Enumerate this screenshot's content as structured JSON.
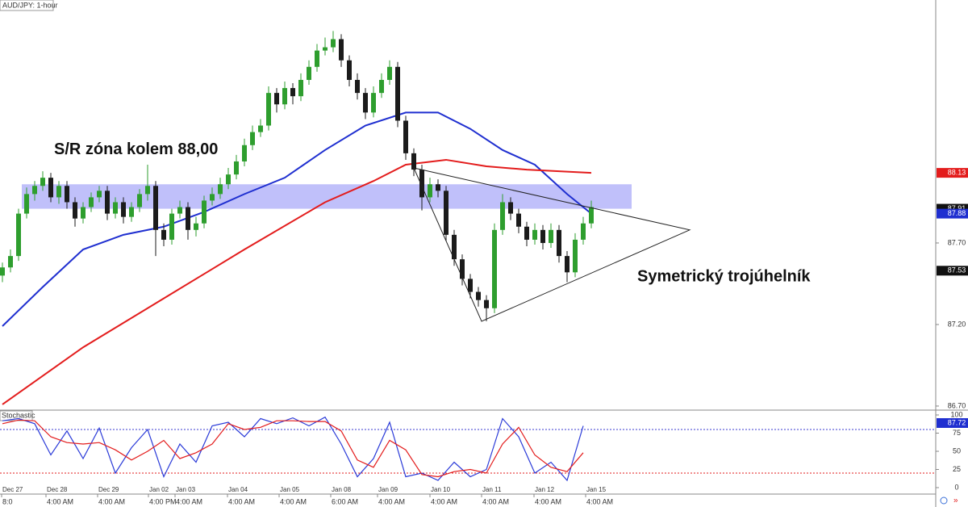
{
  "chart_data": [
    {
      "type": "candlestick",
      "title": "AUD/JPY: 1-hour",
      "xlim": [
        -0.3,
        115.7
      ],
      "ylim": [
        86.675,
        89.19
      ],
      "up_color": "#2e9e2e",
      "down_color": "#1b1b1b",
      "xticks": [
        {
          "value": -0.1,
          "label": "Dec 27",
          "time": "8:0"
        },
        {
          "value": 5.4,
          "label": "Dec 28",
          "time": "4:00 AM"
        },
        {
          "value": 11.8,
          "label": "Dec 29",
          "time": "4:00 AM"
        },
        {
          "value": 18.1,
          "label": "Jan 02",
          "time": "4:00 PM"
        },
        {
          "value": 21.4,
          "label": "Jan 03",
          "time": "4:00 AM"
        },
        {
          "value": 27.9,
          "label": "Jan 04",
          "time": "4:00 AM"
        },
        {
          "value": 34.3,
          "label": "Jan 05",
          "time": "4:00 AM"
        },
        {
          "value": 40.7,
          "label": "Jan 08",
          "time": "6:00 AM"
        },
        {
          "value": 46.5,
          "label": "Jan 09",
          "time": "4:00 AM"
        },
        {
          "value": 53,
          "label": "Jan 10",
          "time": "4:00 AM"
        },
        {
          "value": 59.4,
          "label": "Jan 11",
          "time": "4:00 AM"
        },
        {
          "value": 65.9,
          "label": "Jan 12",
          "time": "4:00 AM"
        },
        {
          "value": 72.3,
          "label": "Jan 15",
          "time": "4:00 AM"
        }
      ],
      "yticks": [
        {
          "value": 86.7,
          "label": "86.70"
        },
        {
          "value": 87.2,
          "label": "87.20"
        },
        {
          "value": 87.7,
          "label": "87.70"
        }
      ],
      "price_markers": [
        {
          "value": 88.13,
          "label": "88.13",
          "color": "#e31c1c"
        },
        {
          "value": 87.91,
          "label": "87.91",
          "color": "#111111"
        },
        {
          "value": 87.88,
          "label": "87.88",
          "color": "#1f2fd0"
        },
        {
          "value": 87.53,
          "label": "87.53",
          "color": "#111111"
        }
      ],
      "candles": [
        [
          87.5,
          87.58,
          87.46,
          87.55
        ],
        [
          87.55,
          87.66,
          87.52,
          87.62
        ],
        [
          87.62,
          87.91,
          87.59,
          87.88
        ],
        [
          87.88,
          88.04,
          87.85,
          88.0
        ],
        [
          88.0,
          88.08,
          87.96,
          88.05
        ],
        [
          88.05,
          88.14,
          88.02,
          88.1
        ],
        [
          88.1,
          88.13,
          87.95,
          87.98
        ],
        [
          87.98,
          88.08,
          87.94,
          88.05
        ],
        [
          88.05,
          88.08,
          87.91,
          87.95
        ],
        [
          87.95,
          87.98,
          87.8,
          87.85
        ],
        [
          87.85,
          87.95,
          87.82,
          87.92
        ],
        [
          87.92,
          88.01,
          87.89,
          87.98
        ],
        [
          87.98,
          88.05,
          87.95,
          88.02
        ],
        [
          88.02,
          88.05,
          87.84,
          87.88
        ],
        [
          87.88,
          87.98,
          87.85,
          87.95
        ],
        [
          87.95,
          87.98,
          87.82,
          87.86
        ],
        [
          87.86,
          87.95,
          87.83,
          87.92
        ],
        [
          87.92,
          88.03,
          87.89,
          88.0
        ],
        [
          88.0,
          88.18,
          87.96,
          88.05
        ],
        [
          88.05,
          88.08,
          87.62,
          87.78
        ],
        [
          87.78,
          87.82,
          87.68,
          87.72
        ],
        [
          87.72,
          87.91,
          87.69,
          87.88
        ],
        [
          87.88,
          87.96,
          87.85,
          87.92
        ],
        [
          87.92,
          87.95,
          87.72,
          87.78
        ],
        [
          87.78,
          87.86,
          87.74,
          87.82
        ],
        [
          87.82,
          87.99,
          87.79,
          87.96
        ],
        [
          87.96,
          88.04,
          87.93,
          88.0
        ],
        [
          88.0,
          88.1,
          87.97,
          88.06
        ],
        [
          88.06,
          88.16,
          88.03,
          88.12
        ],
        [
          88.12,
          88.24,
          88.09,
          88.2
        ],
        [
          88.2,
          88.34,
          88.17,
          88.3
        ],
        [
          88.3,
          88.42,
          88.27,
          88.38
        ],
        [
          88.38,
          88.46,
          88.35,
          88.42
        ],
        [
          88.42,
          88.66,
          88.39,
          88.62
        ],
        [
          88.62,
          88.65,
          88.5,
          88.55
        ],
        [
          88.55,
          88.69,
          88.52,
          88.65
        ],
        [
          88.65,
          88.68,
          88.55,
          88.6
        ],
        [
          88.6,
          88.74,
          88.57,
          88.7
        ],
        [
          88.7,
          88.82,
          88.67,
          88.78
        ],
        [
          88.78,
          88.92,
          88.75,
          88.88
        ],
        [
          88.88,
          88.96,
          88.85,
          88.9
        ],
        [
          88.9,
          89.0,
          88.87,
          88.95
        ],
        [
          88.95,
          88.98,
          88.78,
          88.82
        ],
        [
          88.82,
          88.85,
          88.66,
          88.7
        ],
        [
          88.7,
          88.74,
          88.58,
          88.62
        ],
        [
          88.62,
          88.65,
          88.46,
          88.5
        ],
        [
          88.5,
          88.66,
          88.47,
          88.62
        ],
        [
          88.62,
          88.74,
          88.59,
          88.7
        ],
        [
          88.7,
          88.82,
          88.67,
          88.78
        ],
        [
          88.78,
          88.81,
          88.41,
          88.45
        ],
        [
          88.45,
          88.48,
          88.21,
          88.25
        ],
        [
          88.25,
          88.28,
          88.11,
          88.15
        ],
        [
          88.15,
          88.18,
          87.9,
          87.98
        ],
        [
          87.98,
          88.1,
          87.95,
          88.06
        ],
        [
          88.06,
          88.09,
          87.98,
          88.02
        ],
        [
          88.02,
          88.05,
          87.71,
          87.75
        ],
        [
          87.75,
          87.78,
          87.56,
          87.6
        ],
        [
          87.6,
          87.63,
          87.44,
          87.48
        ],
        [
          87.48,
          87.51,
          87.36,
          87.4
        ],
        [
          87.4,
          87.43,
          87.31,
          87.35
        ],
        [
          87.35,
          87.38,
          87.22,
          87.3
        ],
        [
          87.3,
          87.82,
          87.27,
          87.78
        ],
        [
          87.78,
          88.0,
          87.75,
          87.95
        ],
        [
          87.95,
          87.98,
          87.84,
          87.88
        ],
        [
          87.88,
          87.91,
          87.76,
          87.8
        ],
        [
          87.8,
          87.83,
          87.68,
          87.72
        ],
        [
          87.72,
          87.82,
          87.69,
          87.78
        ],
        [
          87.78,
          87.81,
          87.66,
          87.7
        ],
        [
          87.7,
          87.82,
          87.67,
          87.78
        ],
        [
          87.78,
          87.81,
          87.58,
          87.62
        ],
        [
          87.62,
          87.65,
          87.46,
          87.52
        ],
        [
          87.52,
          87.76,
          87.49,
          87.72
        ],
        [
          87.72,
          87.86,
          87.69,
          87.82
        ],
        [
          87.82,
          87.96,
          87.79,
          87.92
        ]
      ],
      "series": [
        {
          "color": "#1f2fd0",
          "x": [
            0,
            5,
            10,
            15,
            20,
            25,
            30,
            35,
            40,
            45,
            50,
            54,
            58,
            62,
            66,
            70,
            73
          ],
          "values": [
            87.19,
            87.43,
            87.66,
            87.75,
            87.8,
            87.89,
            88.0,
            88.1,
            88.27,
            88.42,
            88.5,
            88.5,
            88.4,
            88.27,
            88.18,
            88.0,
            87.88
          ]
        },
        {
          "color": "#e31c1c",
          "x": [
            0,
            10,
            20,
            30,
            40,
            46,
            50,
            55,
            60,
            65,
            73
          ],
          "values": [
            86.71,
            87.06,
            87.36,
            87.66,
            87.95,
            88.08,
            88.18,
            88.21,
            88.17,
            88.15,
            88.13
          ]
        }
      ],
      "zone": {
        "x": [
          2.4,
          78
        ],
        "y": [
          87.91,
          88.06
        ],
        "color": "#8c8cf5"
      },
      "triangle": [
        [
          51,
          88.16
        ],
        [
          85.2,
          87.78
        ],
        [
          59.4,
          87.22
        ]
      ],
      "annotations": [
        {
          "text": "S/R zóna kolem 88,00",
          "x": 6.4,
          "y": 88.27
        },
        {
          "text": "Symetrický trojúhelník",
          "x": 78.7,
          "y": 87.49
        }
      ]
    },
    {
      "type": "line",
      "title": "Stochastic",
      "xlim": [
        -0.3,
        115.7
      ],
      "ylim": [
        0,
        100
      ],
      "yticks": [
        0,
        25,
        50,
        75,
        100
      ],
      "levels": [
        {
          "value": 80,
          "color": "#3a3ad0"
        },
        {
          "value": 20,
          "color": "#e31c1c"
        }
      ],
      "price_markers": [
        {
          "value": 87.72,
          "label": "87.72",
          "color": "#1f2fd0"
        }
      ],
      "series": [
        {
          "color": "#2a3ad8",
          "x": [
            0,
            2,
            4,
            6,
            8,
            10,
            12,
            14,
            16,
            18,
            20,
            22,
            24,
            26,
            28,
            30,
            32,
            34,
            36,
            38,
            40,
            42,
            44,
            46,
            48,
            50,
            52,
            54,
            56,
            58,
            60,
            62,
            64,
            66,
            68,
            70,
            72
          ],
          "values": [
            92,
            95,
            88,
            45,
            78,
            40,
            82,
            20,
            55,
            80,
            15,
            60,
            35,
            85,
            90,
            70,
            95,
            88,
            96,
            85,
            97,
            60,
            15,
            40,
            90,
            15,
            20,
            10,
            35,
            15,
            25,
            95,
            70,
            20,
            35,
            10,
            85
          ]
        },
        {
          "color": "#e31c1c",
          "x": [
            0,
            2,
            4,
            6,
            8,
            10,
            12,
            14,
            16,
            18,
            20,
            22,
            24,
            26,
            28,
            30,
            32,
            34,
            36,
            38,
            40,
            42,
            44,
            46,
            48,
            50,
            52,
            54,
            56,
            58,
            60,
            62,
            64,
            66,
            68,
            70,
            72
          ],
          "values": [
            88,
            93,
            92,
            70,
            62,
            60,
            62,
            52,
            38,
            50,
            65,
            40,
            48,
            60,
            88,
            80,
            83,
            92,
            92,
            91,
            91,
            78,
            38,
            28,
            65,
            52,
            18,
            15,
            22,
            25,
            20,
            60,
            83,
            45,
            28,
            22,
            48
          ]
        }
      ]
    }
  ]
}
